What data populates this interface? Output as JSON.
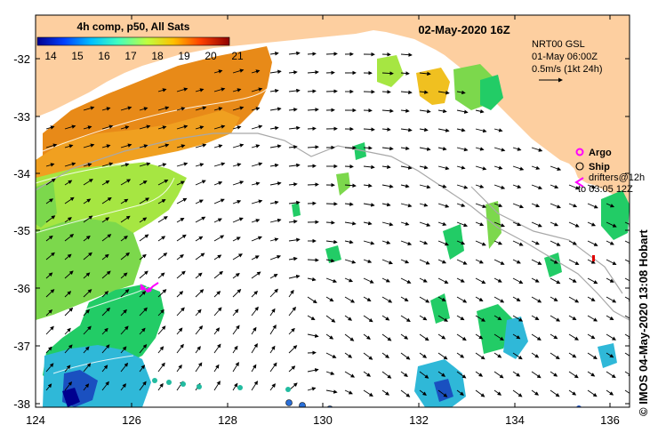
{
  "title": "02-May-2020 16Z",
  "colorbar": {
    "title": "4h comp, p50, All Sats",
    "ticks": [
      "14",
      "15",
      "16",
      "17",
      "18",
      "19",
      "20",
      "21"
    ],
    "colors": [
      "#00008f",
      "#0040ff",
      "#00bfff",
      "#40ffbf",
      "#bfff40",
      "#ffbf00",
      "#ff4000",
      "#8f0000"
    ]
  },
  "current_info": {
    "source": "NRT00 GSL",
    "date": "01-May 06:00Z",
    "scale": "0.5m/s (1kt 24h)"
  },
  "legend": {
    "argo": "Argo",
    "ship": "Ship",
    "drifters_line1": "drifters@12h",
    "drifters_line2": "to 03:05 12Z"
  },
  "credit": "© IMOS 04-May-2020 13:08 Hobart",
  "axes": {
    "x_ticks": [
      "124",
      "126",
      "128",
      "130",
      "132",
      "134",
      "136"
    ],
    "y_ticks": [
      "-32",
      "-33",
      "-34",
      "-35",
      "-36",
      "-37",
      "-38"
    ]
  },
  "colors": {
    "land": "#fdcfa0",
    "argo": "#ff00ff",
    "ship": "#2a6fd8"
  }
}
